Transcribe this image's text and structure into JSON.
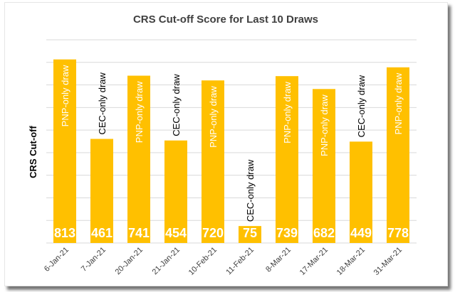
{
  "chart_data": {
    "type": "bar",
    "title": "CRS Cut-off Score for Last 10 Draws",
    "xlabel": "",
    "ylabel": "CRS Cut-off",
    "ylim": [
      0,
      900
    ],
    "grid": true,
    "bar_color": "#FFC000",
    "categories": [
      "6-Jan-21",
      "7-Jan-21",
      "20-Jan-21",
      "21-Jan-21",
      "10-Feb-21",
      "11-Feb-21",
      "8-Mar-21",
      "17-Mar-21",
      "18-Mar-21",
      "31-Mar-21"
    ],
    "values": [
      813,
      461,
      741,
      454,
      720,
      75,
      739,
      682,
      449,
      778
    ],
    "data_labels": [
      "813",
      "461",
      "741",
      "454",
      "720",
      "75",
      "739",
      "682",
      "449",
      "778"
    ],
    "annotations": [
      "PNP-only draw",
      "CEC-only draw",
      "PNP-only draw",
      "CEC-only draw",
      "PNP-only draw",
      "CEC-only draw",
      "PNP-only draw",
      "PNP-only draw",
      "CEC-only draw",
      "PNP-only draw"
    ]
  }
}
